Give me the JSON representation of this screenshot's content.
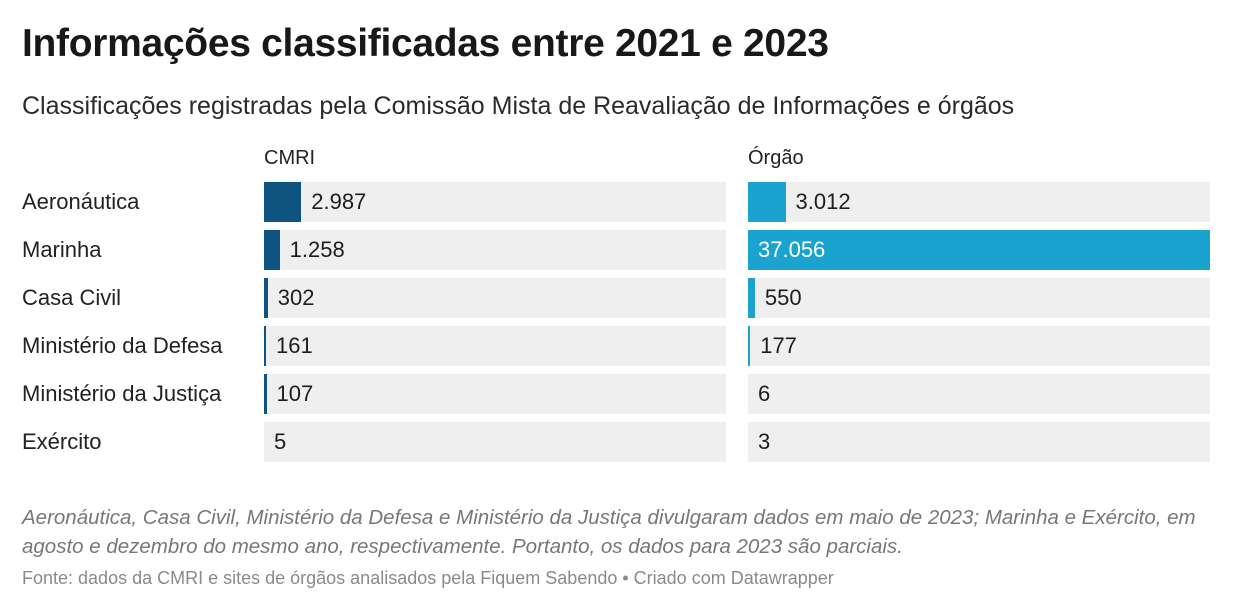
{
  "title": "Informações classificadas entre 2021 e 2023",
  "subtitle": "Classificações registradas pela Comissão Mista de Reavaliação de Informações e órgãos",
  "note": "Aeronáutica, Casa Civil, Ministério da Defesa e Ministério da Justiça divulgaram dados em maio de 2023; Marinha e Exército, em agosto e dezembro do mesmo ano, respectivamente. Portanto, os dados para 2023 são parciais.",
  "source": "Fonte: dados da CMRI e sites de órgãos analisados pela Fiquem Sabendo • Criado com Datawrapper",
  "chart_data": {
    "type": "bar",
    "orientation": "horizontal",
    "title": "Informações classificadas entre 2021 e 2023",
    "categories": [
      "Aeronáutica",
      "Marinha",
      "Casa Civil",
      "Ministério da Defesa",
      "Ministério da Justiça",
      "Exército"
    ],
    "series": [
      {
        "name": "CMRI",
        "color": "#0f5380",
        "values": [
          2987,
          1258,
          302,
          161,
          107,
          5
        ],
        "labels": [
          "2.987",
          "1.258",
          "302",
          "161",
          "107",
          "5"
        ]
      },
      {
        "name": "Órgão",
        "color": "#1ba3cf",
        "values": [
          3012,
          37056,
          550,
          177,
          6,
          3
        ],
        "labels": [
          "3.012",
          "37.056",
          "550",
          "177",
          "6",
          "3"
        ]
      }
    ],
    "xlim": [
      0,
      37056
    ],
    "grid": false
  }
}
